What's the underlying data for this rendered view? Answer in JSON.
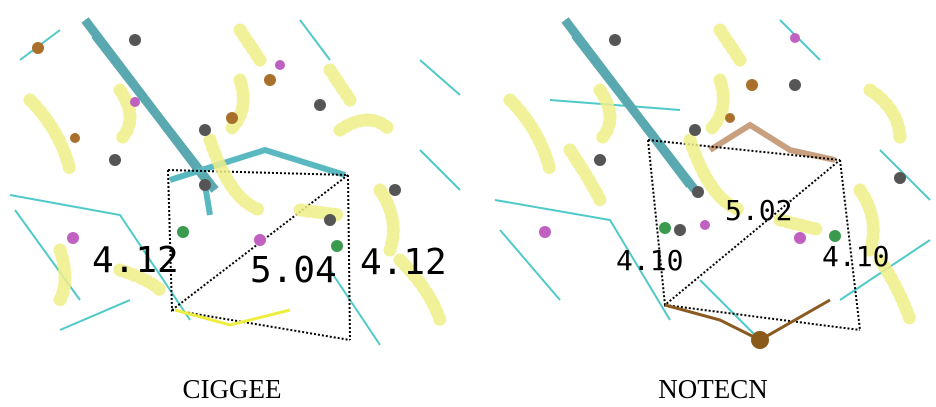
{
  "panels": [
    {
      "caption": "CIGGEE",
      "labels": [
        "4.12",
        "5.04",
        "4.12"
      ]
    },
    {
      "caption": "NOTECN",
      "labels": [
        "4.10",
        "5.02",
        "4.10"
      ]
    }
  ]
}
